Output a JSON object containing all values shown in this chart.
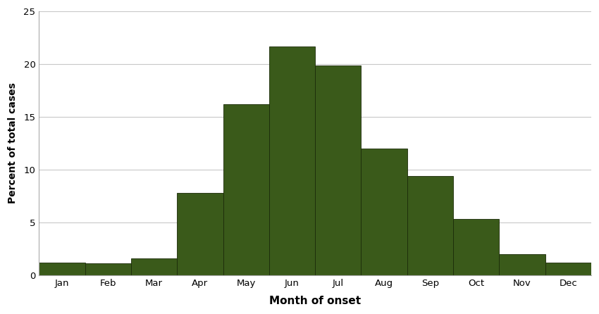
{
  "months": [
    "Jan",
    "Feb",
    "Mar",
    "Apr",
    "May",
    "Jun",
    "Jul",
    "Aug",
    "Sep",
    "Oct",
    "Nov",
    "Dec"
  ],
  "values": [
    1.2,
    1.1,
    1.6,
    7.8,
    16.2,
    21.7,
    19.9,
    12.0,
    9.4,
    5.3,
    2.0,
    1.2
  ],
  "bar_color": "#3a5a1a",
  "bar_edgecolor": "#1a2a08",
  "xlabel": "Month of onset",
  "ylabel": "Percent of total cases",
  "ylim": [
    0,
    25
  ],
  "yticks": [
    0,
    5,
    10,
    15,
    20,
    25
  ],
  "background_color": "#ffffff",
  "grid_color": "#c8c8c8",
  "xlabel_fontsize": 11,
  "ylabel_fontsize": 10,
  "tick_fontsize": 9.5,
  "font_family": "Arial"
}
